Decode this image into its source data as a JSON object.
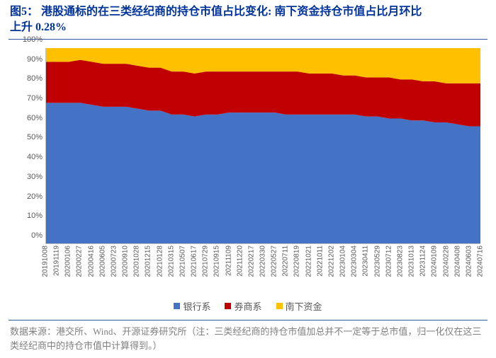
{
  "title": {
    "label": "图5：",
    "text_main": "港股通标的在三类经纪商的持仓市值占比变化: 南下资金持仓市值占比月环比",
    "text_second": "上升 0.28%",
    "color": "#003399",
    "fontsize": 16
  },
  "chart": {
    "type": "stacked-area",
    "ylim": [
      0,
      100
    ],
    "ytick_step": 10,
    "ytick_suffix": "%",
    "yticks": [
      "0%",
      "10%",
      "20%",
      "30%",
      "40%",
      "50%",
      "60%",
      "70%",
      "80%",
      "90%",
      "100%"
    ],
    "xlabels": [
      "20191008",
      "20191119",
      "20200106",
      "20200227",
      "20200416",
      "20200605",
      "20200723",
      "20200910",
      "20201028",
      "20201215",
      "20210128",
      "20210315",
      "20210507",
      "20210617",
      "20210729",
      "20210915",
      "20211109",
      "20211220",
      "20220217",
      "20220330",
      "20220527",
      "20220711",
      "20220819",
      "20221021",
      "20221011",
      "20221202",
      "20230104",
      "20230304",
      "20230411",
      "20230529",
      "20230712",
      "20230823",
      "20231013",
      "20231124",
      "20240109",
      "20240228",
      "20240408",
      "20240603",
      "20240716"
    ],
    "series": [
      {
        "name": "银行系",
        "color": "#4472c4"
      },
      {
        "name": "券商系",
        "color": "#c00000"
      },
      {
        "name": "南下资金",
        "color": "#ffc000"
      }
    ],
    "data": [
      {
        "bank": 72,
        "broker": 21,
        "south": 7
      },
      {
        "bank": 72,
        "broker": 21,
        "south": 7
      },
      {
        "bank": 72,
        "broker": 21,
        "south": 7
      },
      {
        "bank": 72,
        "broker": 22,
        "south": 6
      },
      {
        "bank": 71,
        "broker": 22,
        "south": 7
      },
      {
        "bank": 70,
        "broker": 22,
        "south": 8
      },
      {
        "bank": 70,
        "broker": 22,
        "south": 8
      },
      {
        "bank": 70,
        "broker": 22,
        "south": 8
      },
      {
        "bank": 69,
        "broker": 22,
        "south": 9
      },
      {
        "bank": 68,
        "broker": 22,
        "south": 10
      },
      {
        "bank": 68,
        "broker": 22,
        "south": 10
      },
      {
        "bank": 66,
        "broker": 22,
        "south": 12
      },
      {
        "bank": 66,
        "broker": 22,
        "south": 12
      },
      {
        "bank": 65,
        "broker": 22,
        "south": 13
      },
      {
        "bank": 66,
        "broker": 22,
        "south": 12
      },
      {
        "bank": 66,
        "broker": 22,
        "south": 12
      },
      {
        "bank": 67,
        "broker": 21,
        "south": 12
      },
      {
        "bank": 67,
        "broker": 21,
        "south": 12
      },
      {
        "bank": 67,
        "broker": 21,
        "south": 12
      },
      {
        "bank": 67,
        "broker": 21,
        "south": 12
      },
      {
        "bank": 67,
        "broker": 21,
        "south": 12
      },
      {
        "bank": 66,
        "broker": 22,
        "south": 12
      },
      {
        "bank": 66,
        "broker": 22,
        "south": 12
      },
      {
        "bank": 66,
        "broker": 21,
        "south": 13
      },
      {
        "bank": 66,
        "broker": 21,
        "south": 13
      },
      {
        "bank": 66,
        "broker": 21,
        "south": 13
      },
      {
        "bank": 66,
        "broker": 20,
        "south": 14
      },
      {
        "bank": 66,
        "broker": 20,
        "south": 14
      },
      {
        "bank": 65,
        "broker": 20,
        "south": 15
      },
      {
        "bank": 65,
        "broker": 20,
        "south": 15
      },
      {
        "bank": 64,
        "broker": 21,
        "south": 15
      },
      {
        "bank": 64,
        "broker": 20,
        "south": 16
      },
      {
        "bank": 63,
        "broker": 21,
        "south": 16
      },
      {
        "bank": 63,
        "broker": 20,
        "south": 17
      },
      {
        "bank": 62,
        "broker": 21,
        "south": 17
      },
      {
        "bank": 62,
        "broker": 20,
        "south": 18
      },
      {
        "bank": 61,
        "broker": 21,
        "south": 18
      },
      {
        "bank": 60,
        "broker": 22,
        "south": 18
      },
      {
        "bank": 60,
        "broker": 22,
        "south": 18
      }
    ],
    "grid_color": "#d9d9d9",
    "axis_color": "#bfbfbf",
    "tick_fontsize": 11,
    "tick_color": "#595959",
    "background_color": "#ffffff"
  },
  "legend": {
    "items": [
      {
        "label": "银行系",
        "color": "#4472c4"
      },
      {
        "label": "券商系",
        "color": "#c00000"
      },
      {
        "label": "南下资金",
        "color": "#ffc000"
      }
    ],
    "fontsize": 13,
    "color": "#595959"
  },
  "footer": {
    "text": "数据来源：港交所、Wind、开源证券研究所（注：三类经纪商的持仓市值加总并不一定等于总市值，归一化仅在这三类经纪商中的持仓市值中计算得到。）",
    "color": "#808080",
    "fontsize": 13
  }
}
